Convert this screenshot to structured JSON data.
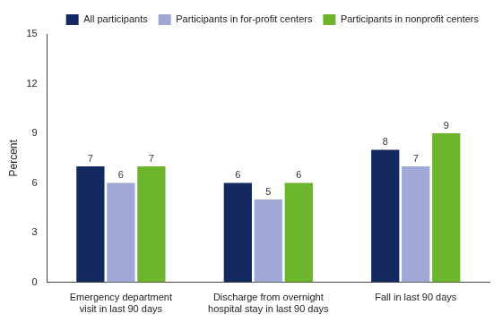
{
  "chart_data": {
    "type": "bar",
    "y_label": "Percent",
    "categories": [
      "Emergency department visit in last 90 days",
      "Discharge from overnight hospital stay in last 90 days",
      "Fall in last 90 days"
    ],
    "series": [
      {
        "name": "All participants",
        "color": "#13295f",
        "values": [
          7,
          6,
          8
        ]
      },
      {
        "name": "Participants in for-profit centers",
        "color": "#a0a9d5",
        "values": [
          6,
          5,
          7
        ]
      },
      {
        "name": "Participants in nonprofit centers",
        "color": "#6cb42c",
        "values": [
          7,
          6,
          9
        ]
      }
    ],
    "ylim": [
      0,
      15
    ],
    "yticks": [
      0,
      3,
      6,
      9,
      12,
      15
    ],
    "grid": false,
    "legend": "top",
    "data_labels": true
  }
}
